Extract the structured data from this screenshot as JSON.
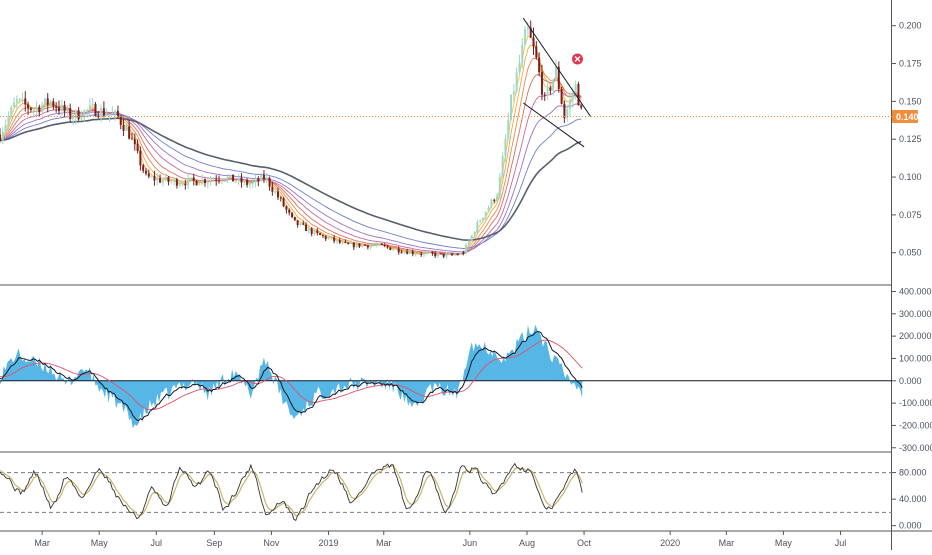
{
  "chart_data": [
    {
      "type": "candlestick",
      "pane": "price",
      "ylim": [
        0.03,
        0.215
      ],
      "y_ticks": [
        0.05,
        0.075,
        0.1,
        0.125,
        0.15,
        0.175,
        0.2
      ],
      "y_tick_labels": [
        "0.050",
        "0.075",
        "0.100",
        "0.125",
        "0.150",
        "0.175",
        "0.200"
      ],
      "last_price": 0.14,
      "last_price_label": "0.140",
      "grid": false,
      "anchors": [
        [
          "2018-01-15",
          0.128
        ],
        [
          "2018-02-01",
          0.15
        ],
        [
          "2018-02-20",
          0.145
        ],
        [
          "2018-03-10",
          0.15
        ],
        [
          "2018-04-01",
          0.14
        ],
        [
          "2018-04-25",
          0.145
        ],
        [
          "2018-05-20",
          0.14
        ],
        [
          "2018-06-01",
          0.13
        ],
        [
          "2018-06-20",
          0.1
        ],
        [
          "2018-07-15",
          0.097
        ],
        [
          "2018-08-10",
          0.097
        ],
        [
          "2018-09-10",
          0.1
        ],
        [
          "2018-10-10",
          0.095
        ],
        [
          "2018-10-25",
          0.1
        ],
        [
          "2018-11-10",
          0.085
        ],
        [
          "2018-11-25",
          0.07
        ],
        [
          "2018-12-20",
          0.062
        ],
        [
          "2019-01-20",
          0.055
        ],
        [
          "2019-02-20",
          0.055
        ],
        [
          "2019-04-01",
          0.05
        ],
        [
          "2019-05-10",
          0.048
        ],
        [
          "2019-05-25",
          0.05
        ],
        [
          "2019-06-10",
          0.07
        ],
        [
          "2019-07-01",
          0.09
        ],
        [
          "2019-07-15",
          0.15
        ],
        [
          "2019-08-01",
          0.198
        ],
        [
          "2019-08-10",
          0.18
        ],
        [
          "2019-08-20",
          0.15
        ],
        [
          "2019-09-01",
          0.17
        ],
        [
          "2019-09-10",
          0.14
        ],
        [
          "2019-09-22",
          0.16
        ],
        [
          "2019-09-29",
          0.14
        ]
      ],
      "trendlines": [
        {
          "from": [
            "2019-07-28",
            0.205
          ],
          "to": [
            "2019-10-08",
            0.14
          ]
        },
        {
          "from": [
            "2019-07-28",
            0.149
          ],
          "to": [
            "2019-10-01",
            0.12
          ]
        }
      ],
      "alert_marker": {
        "date": "2019-09-24",
        "value": 0.178
      }
    },
    {
      "type": "area+line",
      "pane": "oscillator",
      "ylim": [
        -310,
        420
      ],
      "y_ticks": [
        -300,
        -200,
        -100,
        0,
        100,
        200,
        300,
        400
      ],
      "y_tick_labels": [
        "-300.000",
        "-200.000",
        "-100.000",
        "0.000",
        "100.000",
        "200.000",
        "300.000",
        "400.000"
      ],
      "zero_line": 0,
      "anchors": [
        [
          "2018-01-15",
          20
        ],
        [
          "2018-02-01",
          120
        ],
        [
          "2018-02-20",
          80
        ],
        [
          "2018-03-10",
          60
        ],
        [
          "2018-03-25",
          -20
        ],
        [
          "2018-04-15",
          60
        ],
        [
          "2018-05-01",
          -30
        ],
        [
          "2018-05-20",
          -100
        ],
        [
          "2018-06-10",
          -200
        ],
        [
          "2018-06-25",
          -110
        ],
        [
          "2018-07-20",
          -40
        ],
        [
          "2018-08-10",
          0
        ],
        [
          "2018-08-25",
          -60
        ],
        [
          "2018-09-20",
          40
        ],
        [
          "2018-10-10",
          -60
        ],
        [
          "2018-10-25",
          110
        ],
        [
          "2018-11-10",
          -60
        ],
        [
          "2018-11-25",
          -170
        ],
        [
          "2018-12-20",
          -60
        ],
        [
          "2019-01-20",
          -20
        ],
        [
          "2019-02-20",
          -10
        ],
        [
          "2019-03-15",
          -30
        ],
        [
          "2019-04-01",
          -140
        ],
        [
          "2019-04-20",
          -30
        ],
        [
          "2019-05-20",
          -60
        ],
        [
          "2019-06-01",
          170
        ],
        [
          "2019-06-20",
          150
        ],
        [
          "2019-07-10",
          100
        ],
        [
          "2019-07-25",
          180
        ],
        [
          "2019-08-10",
          250
        ],
        [
          "2019-08-25",
          130
        ],
        [
          "2019-09-10",
          30
        ],
        [
          "2019-09-29",
          -50
        ]
      ]
    },
    {
      "type": "line",
      "pane": "stochastic",
      "ylim": [
        -5,
        108
      ],
      "y_ticks": [
        0,
        40,
        80
      ],
      "y_tick_labels": [
        "0.000",
        "40.000",
        "80.000"
      ],
      "dashed_levels": [
        80,
        20
      ],
      "anchors": [
        [
          "2018-01-15",
          85
        ],
        [
          "2018-02-05",
          45
        ],
        [
          "2018-02-20",
          85
        ],
        [
          "2018-03-10",
          20
        ],
        [
          "2018-03-25",
          80
        ],
        [
          "2018-04-10",
          40
        ],
        [
          "2018-05-01",
          90
        ],
        [
          "2018-05-20",
          40
        ],
        [
          "2018-06-10",
          8
        ],
        [
          "2018-06-25",
          60
        ],
        [
          "2018-07-10",
          20
        ],
        [
          "2018-07-25",
          95
        ],
        [
          "2018-08-10",
          50
        ],
        [
          "2018-08-25",
          90
        ],
        [
          "2018-09-10",
          20
        ],
        [
          "2018-09-25",
          60
        ],
        [
          "2018-10-10",
          95
        ],
        [
          "2018-10-25",
          10
        ],
        [
          "2018-11-10",
          40
        ],
        [
          "2018-11-25",
          5
        ],
        [
          "2018-12-15",
          60
        ],
        [
          "2019-01-05",
          90
        ],
        [
          "2019-01-25",
          30
        ],
        [
          "2019-02-15",
          80
        ],
        [
          "2019-03-10",
          90
        ],
        [
          "2019-03-25",
          10
        ],
        [
          "2019-04-15",
          95
        ],
        [
          "2019-05-05",
          5
        ],
        [
          "2019-05-20",
          90
        ],
        [
          "2019-06-05",
          85
        ],
        [
          "2019-06-25",
          40
        ],
        [
          "2019-07-15",
          95
        ],
        [
          "2019-08-05",
          80
        ],
        [
          "2019-08-20",
          15
        ],
        [
          "2019-09-05",
          50
        ],
        [
          "2019-09-20",
          90
        ],
        [
          "2019-09-29",
          40
        ]
      ]
    }
  ],
  "x_axis": {
    "ticks": [
      {
        "label": "Mar",
        "date": "2018-03-01"
      },
      {
        "label": "May",
        "date": "2018-05-01"
      },
      {
        "label": "Jul",
        "date": "2018-07-01"
      },
      {
        "label": "Sep",
        "date": "2018-09-01"
      },
      {
        "label": "Nov",
        "date": "2018-11-01"
      },
      {
        "label": "2019",
        "date": "2019-01-01"
      },
      {
        "label": "Mar",
        "date": "2019-03-01"
      },
      {
        "label": "Jun",
        "date": "2019-06-01"
      },
      {
        "label": "Aug",
        "date": "2019-08-01"
      },
      {
        "label": "Oct",
        "date": "2019-10-01"
      },
      {
        "label": "2020",
        "date": "2020-01-01"
      },
      {
        "label": "Mar",
        "date": "2020-03-01"
      },
      {
        "label": "May",
        "date": "2020-05-01"
      },
      {
        "label": "Jul",
        "date": "2020-07-01"
      }
    ],
    "range": [
      "2018-01-15",
      "2020-08-25"
    ]
  },
  "colors": {
    "up": "#9fd8c4",
    "down": "#7b1e1e",
    "price_line": "#f28d3d",
    "osc_fill": "#4db3e6",
    "osc_line": "#131722",
    "osc_signal": "#e05068",
    "stoch_k": "#333333",
    "stoch_d": "#c9b46c",
    "trendline": "#131722",
    "alert": "#e8334f",
    "ema": [
      "#f5c542",
      "#f0a84a",
      "#e68b4e",
      "#d8705a",
      "#c56aa0",
      "#9b72c9",
      "#6d7fd1",
      "#595e6e"
    ]
  }
}
